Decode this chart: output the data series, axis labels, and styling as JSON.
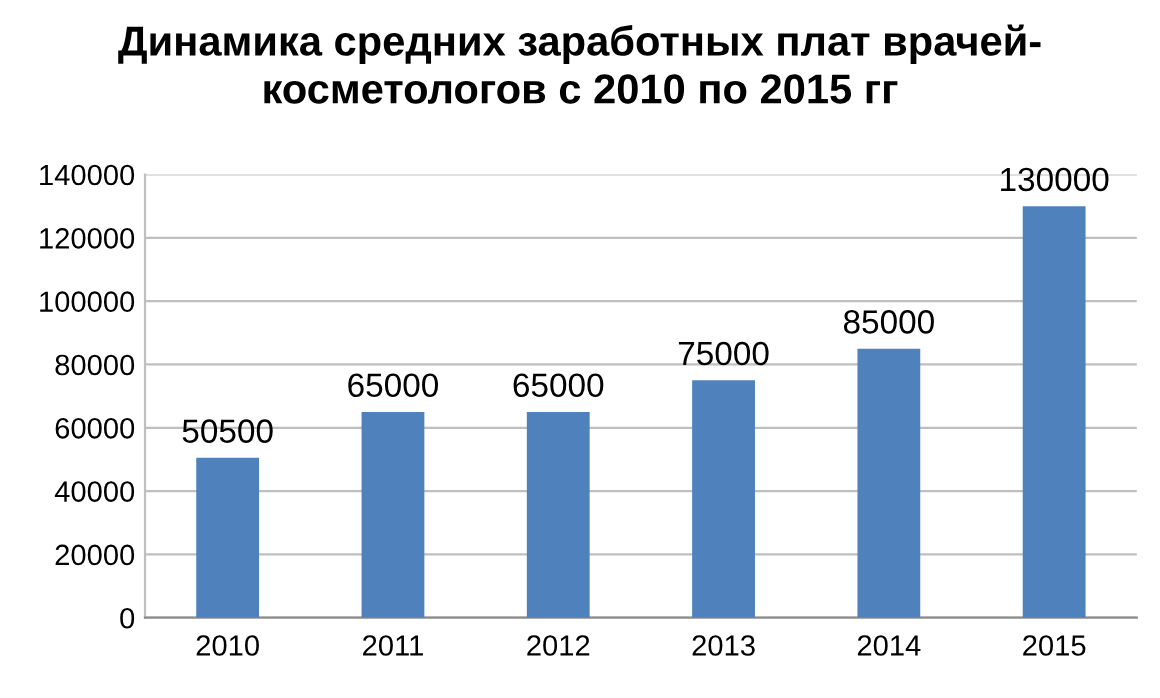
{
  "chart_data": {
    "type": "bar",
    "title": "Динамика средних заработных плат врачей-\nкосметологов с 2010 по 2015 гг",
    "categories": [
      "2010",
      "2011",
      "2012",
      "2013",
      "2014",
      "2015"
    ],
    "values": [
      50500,
      65000,
      65000,
      75000,
      85000,
      130000
    ],
    "color": "#4f81bd",
    "ylim": [
      0,
      140000
    ],
    "yticks": [
      0,
      20000,
      40000,
      60000,
      80000,
      100000,
      120000,
      140000
    ],
    "grid": "y",
    "data_labels": true
  }
}
